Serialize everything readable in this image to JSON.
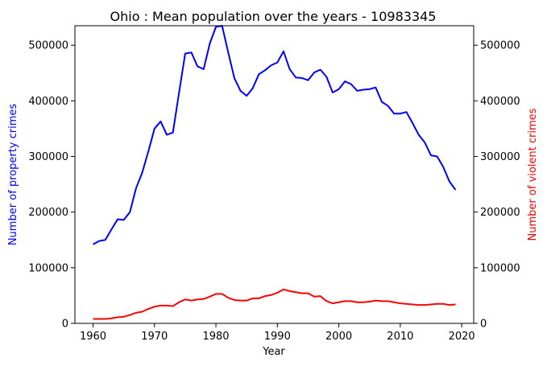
{
  "chart_data": {
    "type": "line",
    "title": "Ohio : Mean population over the years - 10983345",
    "xlabel": "Year",
    "ylabel_left": "Number of property crimes",
    "ylabel_right": "Number of violent crimes",
    "xlim": [
      1957.05,
      2021.95
    ],
    "ylim": [
      0,
      535000
    ],
    "xticks": [
      1960,
      1970,
      1980,
      1990,
      2000,
      2010,
      2020
    ],
    "yticks": [
      0,
      100000,
      200000,
      300000,
      400000,
      500000
    ],
    "grid": false,
    "colors": {
      "property": "#0000ff",
      "violent": "#ff0000",
      "left_label": "#0000ff",
      "right_label": "#ff0000"
    },
    "x": [
      1960,
      1961,
      1962,
      1963,
      1964,
      1965,
      1966,
      1967,
      1968,
      1969,
      1970,
      1971,
      1972,
      1973,
      1974,
      1975,
      1976,
      1977,
      1978,
      1979,
      1980,
      1981,
      1982,
      1983,
      1984,
      1985,
      1986,
      1987,
      1988,
      1989,
      1990,
      1991,
      1992,
      1993,
      1994,
      1995,
      1996,
      1997,
      1998,
      1999,
      2000,
      2001,
      2002,
      2003,
      2004,
      2005,
      2006,
      2007,
      2008,
      2009,
      2010,
      2011,
      2012,
      2013,
      2014,
      2015,
      2016,
      2017,
      2018,
      2019
    ],
    "series": [
      {
        "key": "property",
        "axis": "left",
        "values": [
          142000,
          148000,
          150000,
          169000,
          187000,
          186000,
          200000,
          243000,
          271000,
          309000,
          350000,
          363000,
          339000,
          343000,
          415000,
          485000,
          487000,
          462000,
          457000,
          503000,
          533000,
          535000,
          487000,
          441000,
          418000,
          409000,
          423000,
          448000,
          455000,
          464000,
          469000,
          489000,
          457000,
          442000,
          441000,
          437000,
          451000,
          456000,
          443000,
          415000,
          421000,
          435000,
          430000,
          418000,
          420000,
          421000,
          424000,
          398000,
          391000,
          377000,
          377000,
          380000,
          360000,
          339000,
          325000,
          302000,
          300000,
          281000,
          255000,
          240000
        ]
      },
      {
        "key": "violent",
        "axis": "right",
        "values": [
          8000,
          8000,
          8000,
          9000,
          11000,
          12000,
          15000,
          19000,
          21000,
          26000,
          30000,
          32000,
          32000,
          31000,
          38000,
          43000,
          41000,
          43000,
          44000,
          48000,
          53000,
          53000,
          46000,
          42000,
          41000,
          41000,
          45000,
          45000,
          49000,
          51000,
          55000,
          61000,
          58000,
          56000,
          54000,
          54000,
          48000,
          49000,
          40000,
          36000,
          38000,
          40000,
          40000,
          38000,
          38000,
          39000,
          41000,
          40000,
          40000,
          38000,
          36000,
          35000,
          34000,
          33000,
          33000,
          34000,
          35000,
          35000,
          33000,
          34000
        ]
      }
    ]
  }
}
